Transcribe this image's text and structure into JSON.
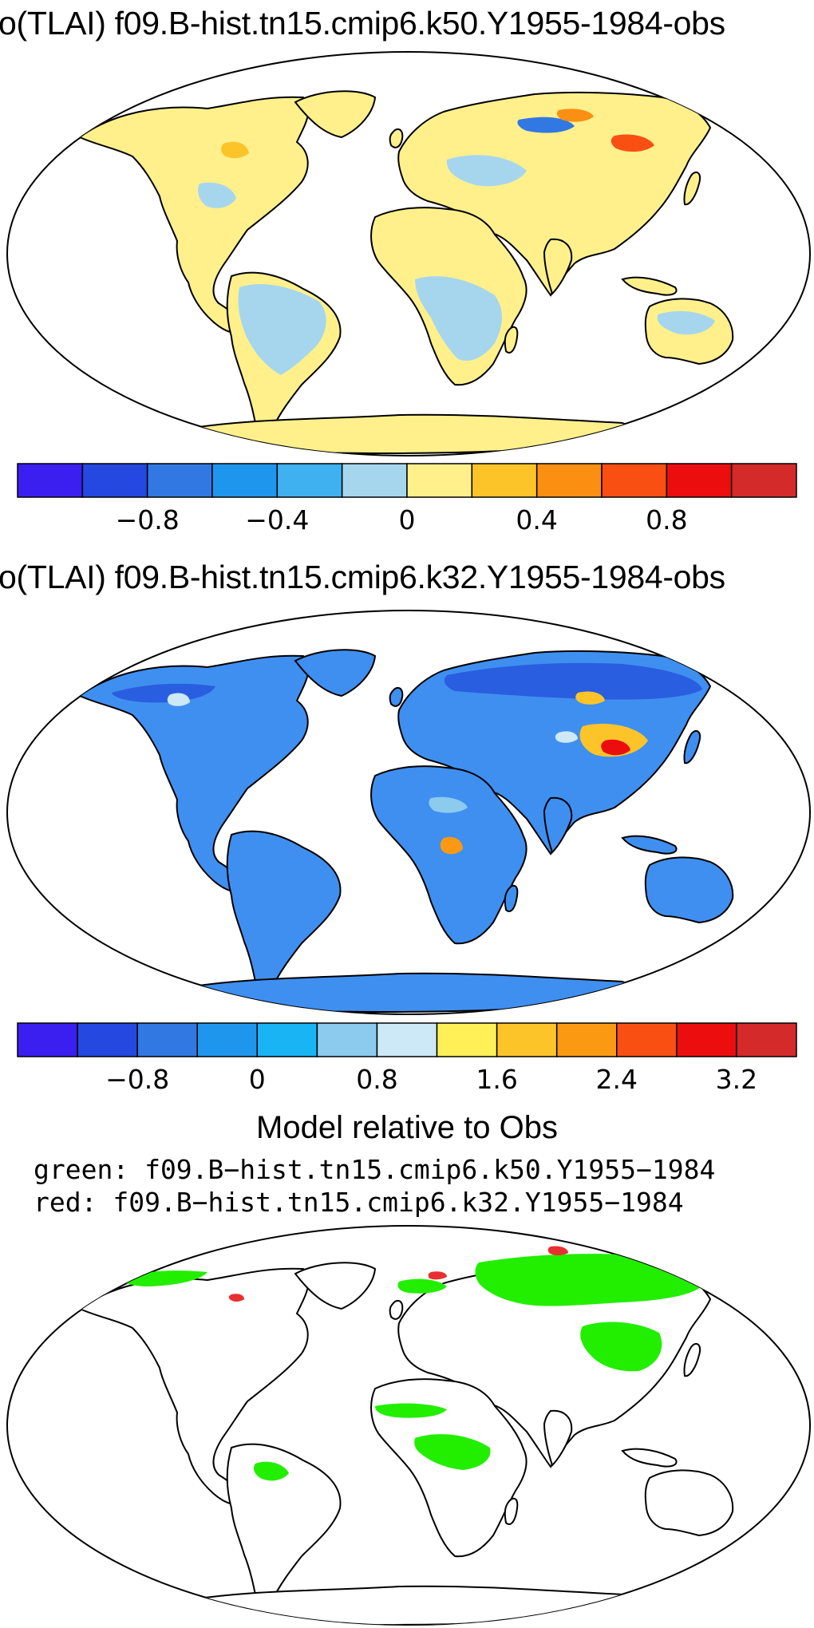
{
  "panel1": {
    "title": "o(TLAI) f09.B-hist.tn15.cmip6.k50.Y1955-1984-obs",
    "colorbar": {
      "colors": [
        "#3a1ff0",
        "#2448e0",
        "#3278e2",
        "#1f96ee",
        "#3fb0f0",
        "#a6d6ee",
        "#fff08c",
        "#fdc42a",
        "#fb8f12",
        "#fa4f12",
        "#ec0e0e",
        "#d42a2a"
      ],
      "tick_labels": [
        "−0.8",
        "−0.4",
        "0",
        "0.4",
        "0.8"
      ]
    }
  },
  "panel2": {
    "title": "o(TLAI) f09.B-hist.tn15.cmip6.k32.Y1955-1984-obs",
    "colorbar": {
      "colors": [
        "#3a1ff0",
        "#2448e0",
        "#3278e2",
        "#1f96ee",
        "#19b4f4",
        "#8ccaee",
        "#cde8f6",
        "#fff058",
        "#fdc42a",
        "#fb9a12",
        "#fa4f12",
        "#ec0e0e",
        "#d42a2a"
      ],
      "tick_labels": [
        "−0.8",
        "0",
        "0.8",
        "1.6",
        "2.4",
        "3.2"
      ]
    }
  },
  "panel3": {
    "title": "Model relative to Obs",
    "legend_green": "green: f09.B−hist.tn15.cmip6.k50.Y1955−1984",
    "legend_red": "red: f09.B−hist.tn15.cmip6.k32.Y1955−1984",
    "colors": {
      "green": "#22ee00",
      "red": "#e83030"
    }
  },
  "map_colors": {
    "panel1_land": "#fff08c",
    "panel1_blue": "#a6d6ee",
    "panel2_land": "#3f8ff0",
    "panel2_dark": "#2a5ee0",
    "panel2_hot": "#fdc42a"
  }
}
